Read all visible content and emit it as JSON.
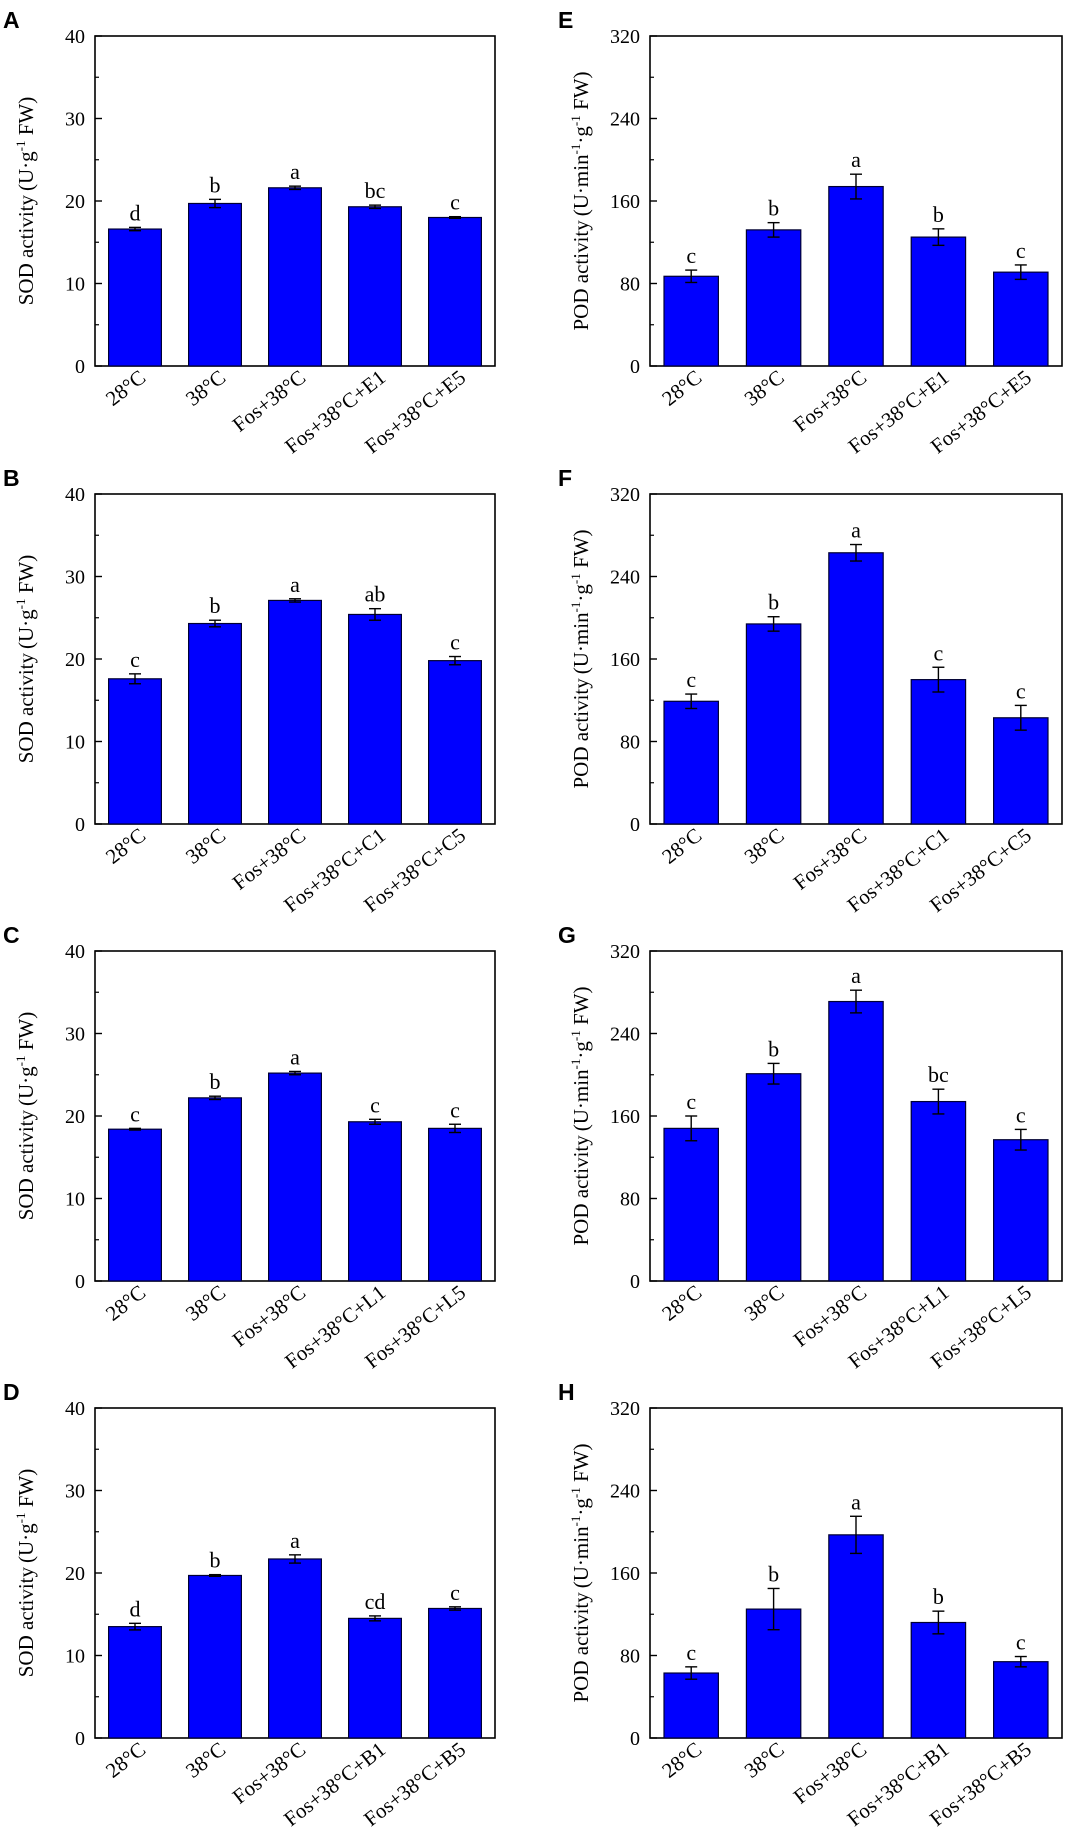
{
  "figure": {
    "colors": {
      "bar": "#0000ff",
      "bar_edge": "#000033",
      "axis": "#000000"
    }
  },
  "chart_data": [
    {
      "panel": "A",
      "type": "bar",
      "ylabel_main": "SOD activity",
      "ylabel_units": {
        "pre": "(U·g",
        "sup": "-1",
        "post": " FW)"
      },
      "yticks": [
        "40",
        "30",
        "20",
        "10",
        "0"
      ],
      "ylim": [
        0,
        40
      ],
      "categories": [
        "28°C",
        "38°C",
        "Fos+38°C",
        "Fos+38°C+E1",
        "Fos+38°C+E5"
      ],
      "values": [
        16.6,
        19.7,
        21.6,
        19.3,
        18.0
      ],
      "errors": [
        0.2,
        0.5,
        0.2,
        0.2,
        0.1
      ],
      "letters": [
        "d",
        "b",
        "a",
        "bc",
        "c"
      ]
    },
    {
      "panel": "E",
      "type": "bar",
      "ylabel_main": "POD activity",
      "ylabel_units": {
        "pre": "(U·min",
        "sup": "-1",
        "mid": "·g",
        "sup2": "-1",
        "post": " FW)"
      },
      "yticks": [
        "320",
        "240",
        "160",
        "80",
        "0"
      ],
      "ylim": [
        0,
        320
      ],
      "categories": [
        "28°C",
        "38°C",
        "Fos+38°C",
        "Fos+38°C+E1",
        "Fos+38°C+E5"
      ],
      "values": [
        87,
        132,
        174,
        125,
        91
      ],
      "errors": [
        6,
        7,
        12,
        8,
        7
      ],
      "letters": [
        "c",
        "b",
        "a",
        "b",
        "c"
      ]
    },
    {
      "panel": "B",
      "type": "bar",
      "ylabel_main": "SOD activity",
      "ylabel_units": {
        "pre": "(U·g",
        "sup": "-1",
        "post": " FW)"
      },
      "yticks": [
        "40",
        "30",
        "20",
        "10",
        "0"
      ],
      "ylim": [
        0,
        40
      ],
      "categories": [
        "28°C",
        "38°C",
        "Fos+38°C",
        "Fos+38°C+C1",
        "Fos+38°C+C5"
      ],
      "values": [
        17.6,
        24.3,
        27.1,
        25.4,
        19.8
      ],
      "errors": [
        0.6,
        0.4,
        0.2,
        0.7,
        0.5
      ],
      "letters": [
        "c",
        "b",
        "a",
        "ab",
        "c"
      ]
    },
    {
      "panel": "F",
      "type": "bar",
      "ylabel_main": "POD activity",
      "ylabel_units": {
        "pre": "(U·min",
        "sup": "-1",
        "mid": "·g",
        "sup2": "-1",
        "post": " FW)"
      },
      "yticks": [
        "320",
        "240",
        "160",
        "80",
        "0"
      ],
      "ylim": [
        0,
        320
      ],
      "categories": [
        "28°C",
        "38°C",
        "Fos+38°C",
        "Fos+38°C+C1",
        "Fos+38°C+C5"
      ],
      "values": [
        119,
        194,
        263,
        140,
        103
      ],
      "errors": [
        7,
        7,
        8,
        12,
        12
      ],
      "letters": [
        "c",
        "b",
        "a",
        "c",
        "c"
      ]
    },
    {
      "panel": "C",
      "type": "bar",
      "ylabel_main": "SOD activity",
      "ylabel_units": {
        "pre": "(U·g",
        "sup": "-1",
        "post": " FW)"
      },
      "yticks": [
        "40",
        "30",
        "20",
        "10",
        "0"
      ],
      "ylim": [
        0,
        40
      ],
      "categories": [
        "28°C",
        "38°C",
        "Fos+38°C",
        "Fos+38°C+L1",
        "Fos+38°C+L5"
      ],
      "values": [
        18.4,
        22.2,
        25.2,
        19.3,
        18.5
      ],
      "errors": [
        0.1,
        0.2,
        0.2,
        0.3,
        0.5
      ],
      "letters": [
        "c",
        "b",
        "a",
        "c",
        "c"
      ]
    },
    {
      "panel": "G",
      "type": "bar",
      "ylabel_main": "POD activity",
      "ylabel_units": {
        "pre": "(U·min",
        "sup": "-1",
        "mid": "·g",
        "sup2": "-1",
        "post": " FW)"
      },
      "yticks": [
        "320",
        "240",
        "160",
        "80",
        "0"
      ],
      "ylim": [
        0,
        320
      ],
      "categories": [
        "28°C",
        "38°C",
        "Fos+38°C",
        "Fos+38°C+L1",
        "Fos+38°C+L5"
      ],
      "values": [
        148,
        201,
        271,
        174,
        137
      ],
      "errors": [
        12,
        10,
        11,
        12,
        10
      ],
      "letters": [
        "c",
        "b",
        "a",
        "bc",
        "c"
      ]
    },
    {
      "panel": "D",
      "type": "bar",
      "ylabel_main": "SOD activity",
      "ylabel_units": {
        "pre": "(U·g",
        "sup": "-1",
        "post": " FW)"
      },
      "yticks": [
        "40",
        "30",
        "20",
        "10",
        "0"
      ],
      "ylim": [
        0,
        40
      ],
      "categories": [
        "28°C",
        "38°C",
        "Fos+38°C",
        "Fos+38°C+B1",
        "Fos+38°C+B5"
      ],
      "values": [
        13.5,
        19.7,
        21.7,
        14.5,
        15.7
      ],
      "errors": [
        0.4,
        0.1,
        0.5,
        0.3,
        0.2
      ],
      "letters": [
        "d",
        "b",
        "a",
        "cd",
        "c"
      ]
    },
    {
      "panel": "H",
      "type": "bar",
      "ylabel_main": "POD activity",
      "ylabel_units": {
        "pre": "(U·min",
        "sup": "-1",
        "mid": "·g",
        "sup2": "-1",
        "post": " FW)"
      },
      "yticks": [
        "320",
        "240",
        "160",
        "80",
        "0"
      ],
      "ylim": [
        0,
        320
      ],
      "categories": [
        "28°C",
        "38°C",
        "Fos+38°C",
        "Fos+38°C+B1",
        "Fos+38°C+B5"
      ],
      "values": [
        63,
        125,
        197,
        112,
        74
      ],
      "errors": [
        6,
        20,
        18,
        11,
        5
      ],
      "letters": [
        "c",
        "b",
        "a",
        "b",
        "c"
      ]
    }
  ]
}
